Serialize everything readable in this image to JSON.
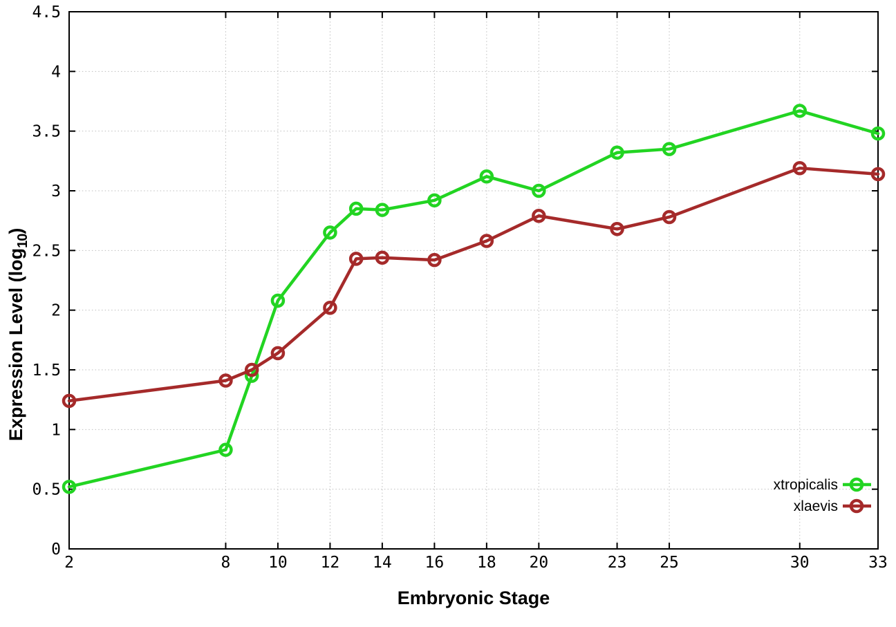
{
  "chart_data": {
    "type": "line",
    "title": "",
    "xlabel": "Embryonic Stage",
    "ylabel": {
      "prefix": "Expression Level (log",
      "subscript": "10",
      "suffix": ")"
    },
    "xlim": [
      2,
      33
    ],
    "ylim": [
      0,
      4.5
    ],
    "grid": true,
    "legend_position": "bottom-right-inside",
    "x_ticks": [
      2,
      8,
      10,
      12,
      14,
      16,
      18,
      20,
      23,
      25,
      30,
      33
    ],
    "x_tick_labels": [
      "2",
      "8",
      "10",
      "12",
      "14",
      "16",
      "18",
      "20",
      "23",
      "25",
      "30",
      "33"
    ],
    "y_ticks": [
      0,
      0.5,
      1,
      1.5,
      2,
      2.5,
      3,
      3.5,
      4,
      4.5
    ],
    "y_tick_labels": [
      "0",
      "0.5",
      "1",
      "1.5",
      "2",
      "2.5",
      "3",
      "3.5",
      "4",
      "4.5"
    ],
    "x": [
      2,
      8,
      9,
      10,
      12,
      13,
      14,
      16,
      18,
      20,
      23,
      25,
      30,
      33
    ],
    "series": [
      {
        "name": "xtropicalis",
        "color": "#22d422",
        "marker": "open-circle",
        "values": [
          0.52,
          0.83,
          1.45,
          2.08,
          2.65,
          2.85,
          2.84,
          2.92,
          3.12,
          3.0,
          3.32,
          3.35,
          3.67,
          3.48
        ]
      },
      {
        "name": "xlaevis",
        "color": "#a52a2a",
        "marker": "open-circle",
        "values": [
          1.24,
          1.41,
          1.5,
          1.64,
          2.02,
          2.43,
          2.44,
          2.42,
          2.58,
          2.79,
          2.68,
          2.78,
          3.19,
          3.14
        ]
      }
    ]
  },
  "colors": {
    "background": "#ffffff",
    "border": "#000000",
    "grid": "#bdbdbd",
    "tick_text": "#000000",
    "legend_text": "#000000"
  }
}
